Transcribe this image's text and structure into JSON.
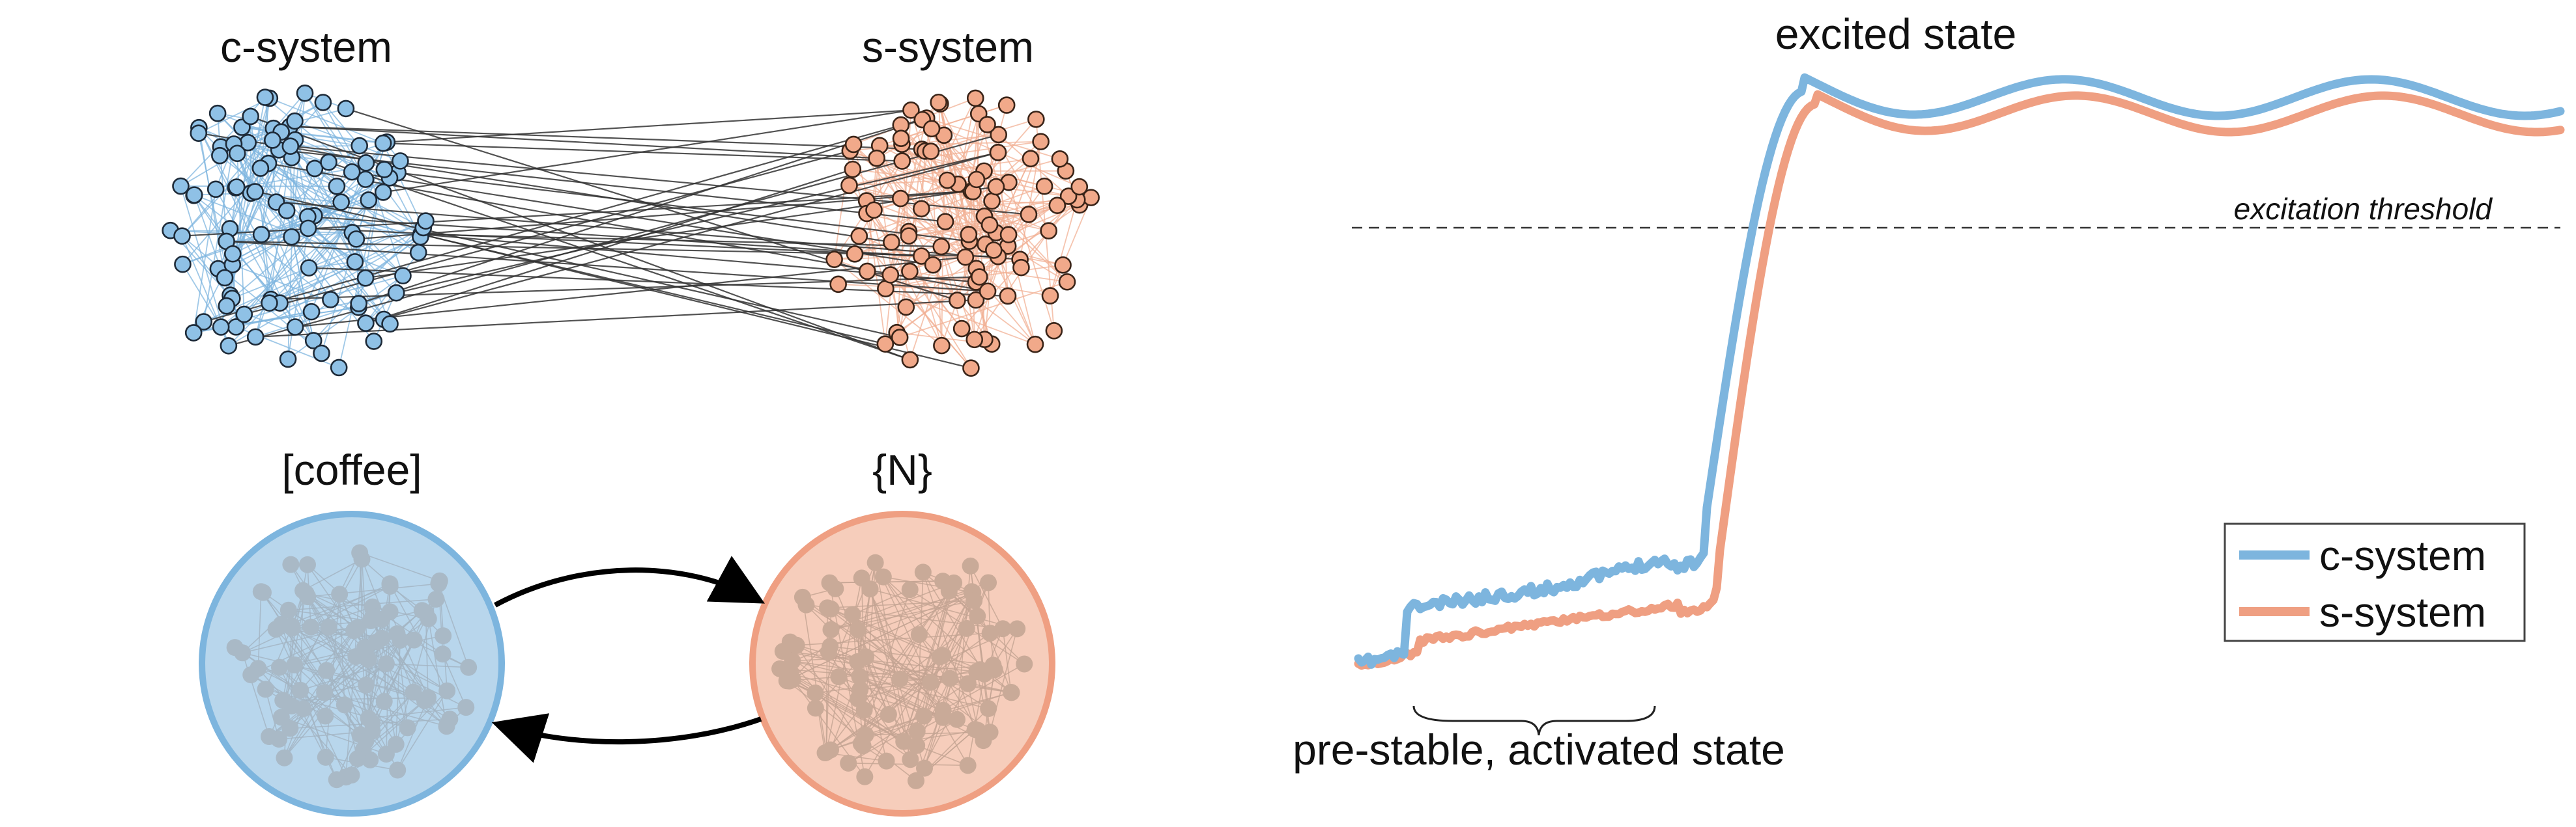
{
  "network": {
    "left_label": "c-system",
    "right_label": "s-system"
  },
  "circles": {
    "left_label": "[coffee]",
    "right_label": "{N}"
  },
  "plot": {
    "top_label": "excited state",
    "threshold_label": "excitation threshold",
    "bottom_label": "pre-stable, activated state",
    "legend": [
      {
        "name": "c-system",
        "color": "#7db5de"
      },
      {
        "name": "s-system",
        "color": "#ef9f82"
      }
    ]
  },
  "colors": {
    "c_system": "#7db5de",
    "s_system": "#ef9f82",
    "c_circle_fill": "#b8d6ec",
    "s_circle_fill": "#f6cdbb"
  }
}
